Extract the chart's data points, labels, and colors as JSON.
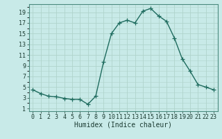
{
  "x": [
    0,
    1,
    2,
    3,
    4,
    5,
    6,
    7,
    8,
    9,
    10,
    11,
    12,
    13,
    14,
    15,
    16,
    17,
    18,
    19,
    20,
    21,
    22,
    23
  ],
  "y": [
    4.5,
    3.8,
    3.3,
    3.2,
    2.9,
    2.7,
    2.7,
    1.8,
    3.3,
    9.7,
    15.0,
    17.0,
    17.5,
    17.0,
    19.2,
    19.7,
    18.3,
    17.3,
    14.2,
    10.3,
    8.0,
    5.5,
    5.0,
    4.5
  ],
  "xlabel": "Humidex (Indice chaleur)",
  "bg_color": "#c8eae8",
  "line_color": "#1e6b5e",
  "grid_color": "#b0d4cc",
  "ylim": [
    0.5,
    20.5
  ],
  "xlim": [
    -0.5,
    23.5
  ],
  "yticks": [
    1,
    3,
    5,
    7,
    9,
    11,
    13,
    15,
    17,
    19
  ],
  "xticks": [
    0,
    1,
    2,
    3,
    4,
    5,
    6,
    7,
    8,
    9,
    10,
    11,
    12,
    13,
    14,
    15,
    16,
    17,
    18,
    19,
    20,
    21,
    22,
    23
  ],
  "marker": "+",
  "markersize": 4,
  "linewidth": 1.0,
  "xlabel_fontsize": 7,
  "tick_fontsize": 6
}
